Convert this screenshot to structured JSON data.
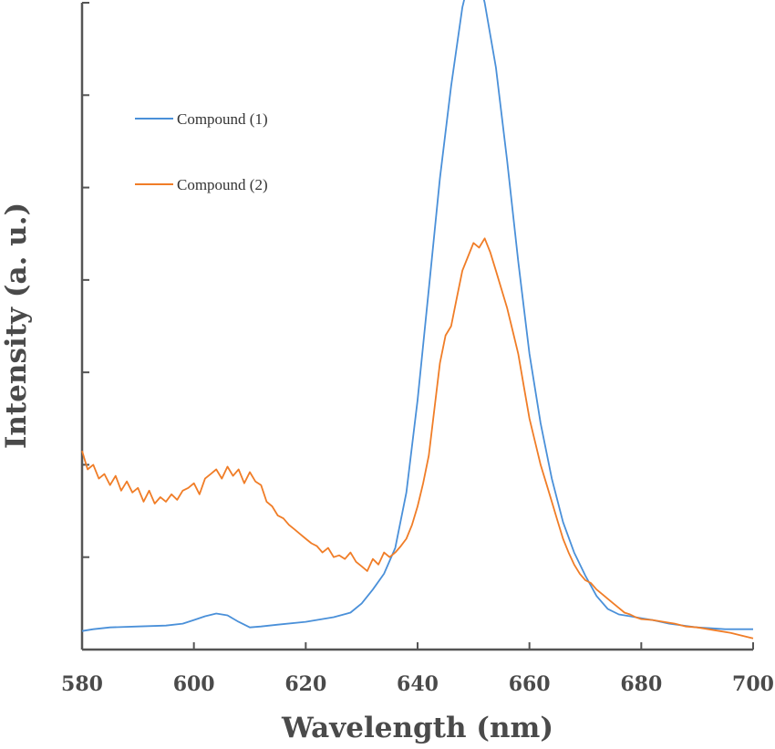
{
  "chart_data": {
    "type": "line",
    "title": "",
    "xlabel": "Wavelength (nm)",
    "ylabel": "Intensity (a. u.)",
    "xlim": [
      580,
      700
    ],
    "ylim": [
      0,
      7
    ],
    "x_ticks": [
      580,
      600,
      620,
      640,
      660,
      680,
      700
    ],
    "y_ticks": [
      0,
      1,
      2,
      3,
      4,
      5,
      6,
      7
    ],
    "y_tick_labels_shown": false,
    "grid": false,
    "legend_position": "top-left",
    "series": [
      {
        "name": "Compound (1)",
        "color": "#4a90d9",
        "x": [
          580,
          582,
          585,
          590,
          595,
          598,
          600,
          602,
          604,
          606,
          608,
          610,
          612,
          615,
          620,
          625,
          628,
          630,
          632,
          634,
          636,
          638,
          640,
          642,
          644,
          646,
          648,
          649,
          650,
          651,
          652,
          654,
          656,
          658,
          660,
          662,
          664,
          666,
          668,
          670,
          672,
          674,
          676,
          678,
          680,
          682,
          685,
          690,
          695,
          700
        ],
        "y": [
          0.2,
          0.22,
          0.24,
          0.25,
          0.26,
          0.28,
          0.32,
          0.36,
          0.39,
          0.37,
          0.3,
          0.24,
          0.25,
          0.27,
          0.3,
          0.35,
          0.4,
          0.5,
          0.65,
          0.82,
          1.1,
          1.7,
          2.7,
          3.9,
          5.1,
          6.1,
          6.95,
          7.2,
          7.3,
          7.25,
          7.0,
          6.3,
          5.3,
          4.2,
          3.2,
          2.45,
          1.85,
          1.38,
          1.05,
          0.8,
          0.58,
          0.44,
          0.38,
          0.36,
          0.34,
          0.32,
          0.28,
          0.24,
          0.22,
          0.22
        ]
      },
      {
        "name": "Compound (2)",
        "color": "#f07d27",
        "x": [
          580,
          581,
          582,
          583,
          584,
          585,
          586,
          587,
          588,
          589,
          590,
          591,
          592,
          593,
          594,
          595,
          596,
          597,
          598,
          599,
          600,
          601,
          602,
          603,
          604,
          605,
          606,
          607,
          608,
          609,
          610,
          611,
          612,
          613,
          614,
          615,
          616,
          617,
          618,
          619,
          620,
          621,
          622,
          623,
          624,
          625,
          626,
          627,
          628,
          629,
          630,
          631,
          632,
          633,
          634,
          635,
          636,
          637,
          638,
          639,
          640,
          641,
          642,
          643,
          644,
          645,
          646,
          647,
          648,
          649,
          650,
          651,
          652,
          653,
          654,
          655,
          656,
          657,
          658,
          659,
          660,
          661,
          662,
          663,
          664,
          665,
          666,
          667,
          668,
          669,
          670,
          671,
          672,
          673,
          674,
          675,
          676,
          677,
          678,
          679,
          680,
          682,
          684,
          686,
          688,
          690,
          692,
          694,
          696,
          698,
          700
        ],
        "y": [
          2.15,
          1.95,
          2.0,
          1.85,
          1.9,
          1.78,
          1.88,
          1.72,
          1.82,
          1.7,
          1.75,
          1.6,
          1.72,
          1.58,
          1.65,
          1.6,
          1.68,
          1.62,
          1.72,
          1.75,
          1.8,
          1.68,
          1.85,
          1.9,
          1.95,
          1.85,
          1.98,
          1.88,
          1.95,
          1.8,
          1.92,
          1.82,
          1.78,
          1.6,
          1.55,
          1.45,
          1.42,
          1.35,
          1.3,
          1.25,
          1.2,
          1.15,
          1.12,
          1.05,
          1.1,
          1.0,
          1.02,
          0.98,
          1.05,
          0.95,
          0.9,
          0.85,
          0.98,
          0.92,
          1.05,
          1.0,
          1.05,
          1.12,
          1.2,
          1.35,
          1.55,
          1.8,
          2.1,
          2.6,
          3.1,
          3.4,
          3.5,
          3.8,
          4.1,
          4.25,
          4.4,
          4.35,
          4.45,
          4.3,
          4.1,
          3.9,
          3.7,
          3.45,
          3.2,
          2.85,
          2.5,
          2.25,
          2.0,
          1.8,
          1.6,
          1.4,
          1.2,
          1.05,
          0.92,
          0.82,
          0.75,
          0.72,
          0.65,
          0.6,
          0.55,
          0.5,
          0.45,
          0.4,
          0.38,
          0.35,
          0.33,
          0.32,
          0.3,
          0.28,
          0.25,
          0.24,
          0.22,
          0.2,
          0.18,
          0.15,
          0.12
        ]
      }
    ]
  }
}
